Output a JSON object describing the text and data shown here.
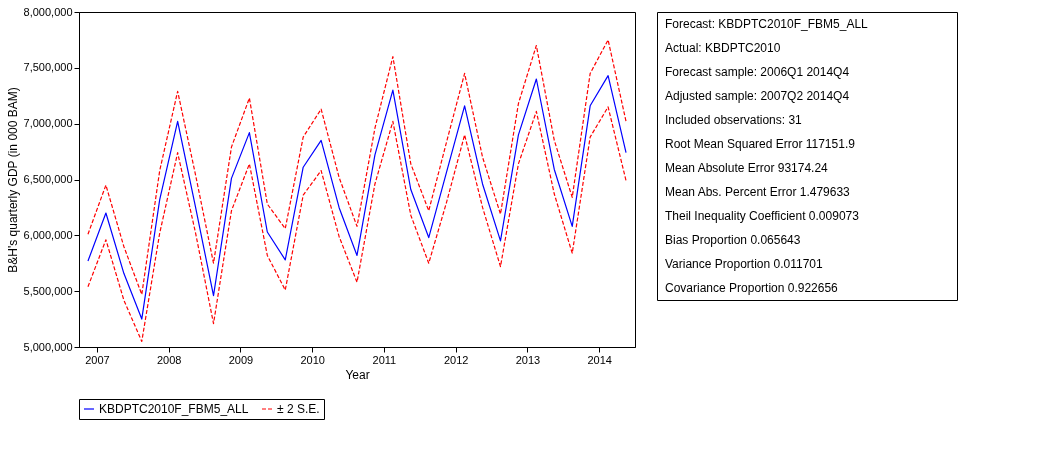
{
  "chart_data": {
    "type": "line",
    "xlabel": "Year",
    "ylabel": "B&H's quarterly GDP (in 000 BAM)",
    "x": [
      2007.25,
      2007.5,
      2007.75,
      2008,
      2008.25,
      2008.5,
      2008.75,
      2009,
      2009.25,
      2009.5,
      2009.75,
      2010,
      2010.25,
      2010.5,
      2010.75,
      2011,
      2011.25,
      2011.5,
      2011.75,
      2012,
      2012.25,
      2012.5,
      2012.75,
      2013,
      2013.25,
      2013.5,
      2013.75,
      2014,
      2014.25,
      2014.5,
      2014.75
    ],
    "series": [
      {
        "name": "KBDPTC2010F_FBM5_ALL",
        "color": "#0000ff",
        "line_style": "solid",
        "values": [
          5770000,
          6200000,
          5660000,
          5250000,
          6320000,
          7020000,
          6250000,
          5460000,
          6510000,
          6920000,
          6030000,
          5780000,
          6610000,
          6850000,
          6250000,
          5820000,
          6720000,
          7300000,
          6410000,
          5980000,
          6570000,
          7160000,
          6460000,
          5950000,
          6900000,
          7400000,
          6590000,
          6080000,
          7160000,
          7430000,
          6740000
        ]
      },
      {
        "name": "± 2 S.E.",
        "color": "#ff0000",
        "line_style": "dashed",
        "values": [
          6010000,
          6450000,
          5900000,
          5470000,
          6580000,
          7290000,
          6540000,
          5750000,
          6790000,
          7230000,
          6280000,
          6060000,
          6880000,
          7130000,
          6520000,
          6080000,
          6960000,
          7600000,
          6640000,
          6220000,
          6840000,
          7450000,
          6700000,
          6190000,
          7180000,
          7700000,
          6850000,
          6340000,
          7450000,
          7750000,
          7020000
        ]
      },
      {
        "color": "#ff0000",
        "line_style": "dashed",
        "values": [
          5540000,
          5960000,
          5420000,
          5050000,
          6020000,
          6740000,
          6020000,
          5210000,
          6220000,
          6640000,
          5820000,
          5510000,
          6360000,
          6580000,
          5990000,
          5580000,
          6460000,
          7020000,
          6180000,
          5750000,
          6300000,
          6900000,
          6250000,
          5720000,
          6640000,
          7110000,
          6370000,
          5840000,
          6880000,
          7150000,
          6490000
        ]
      }
    ],
    "xlim": [
      2007.125,
      2014.875
    ],
    "xticks": [
      {
        "value": 2007.375,
        "label": "2007"
      },
      {
        "value": 2008.375,
        "label": "2008"
      },
      {
        "value": 2009.375,
        "label": "2009"
      },
      {
        "value": 2010.375,
        "label": "2010"
      },
      {
        "value": 2011.375,
        "label": "2011"
      },
      {
        "value": 2012.375,
        "label": "2012"
      },
      {
        "value": 2013.375,
        "label": "2013"
      },
      {
        "value": 2014.375,
        "label": "2014"
      }
    ],
    "ylim": [
      5000000,
      8000000
    ],
    "yticks": [
      {
        "value": 5000000,
        "label": "5,000,000"
      },
      {
        "value": 5500000,
        "label": "5,500,000"
      },
      {
        "value": 6000000,
        "label": "6,000,000"
      },
      {
        "value": 6500000,
        "label": "6,500,000"
      },
      {
        "value": 7000000,
        "label": "7,000,000"
      },
      {
        "value": 7500000,
        "label": "7,500,000"
      },
      {
        "value": 8000000,
        "label": "8,000,000"
      }
    ],
    "grid": false,
    "legend": "bottom",
    "annotations": [
      "Forecast: KBDPTC2010F_FBM5_ALL",
      "Actual: KBDPTC2010",
      "Forecast sample: 2006Q1 2014Q4",
      "Adjusted sample: 2007Q2 2014Q4",
      "Included observations: 31",
      "Root Mean Squared Error 117151.9",
      "Mean Absolute Error 93174.24",
      "Mean Abs. Percent Error 1.479633",
      "Theil Inequality Coefficient 0.009073",
      "Bias Proportion 0.065643",
      "Variance Proportion 0.011701",
      "Covariance Proportion 0.922656"
    ]
  }
}
